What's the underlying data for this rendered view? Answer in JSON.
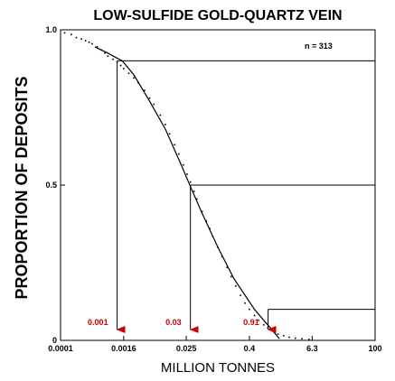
{
  "chart_data": {
    "type": "scatter",
    "title": "LOW-SULFIDE GOLD-QUARTZ VEIN",
    "xlabel": "MILLION TONNES",
    "ylabel": "PROPORTION OF DEPOSITS",
    "x_scale": "log",
    "xlim": [
      0.0001,
      100
    ],
    "ylim": [
      0,
      1
    ],
    "x_ticks": [
      {
        "value": 0.0001,
        "label": "0.0001"
      },
      {
        "value": 0.0016,
        "label": "0.0016"
      },
      {
        "value": 0.025,
        "label": "0.025"
      },
      {
        "value": 0.4,
        "label": "0.4"
      },
      {
        "value": 6.3,
        "label": "6.3"
      },
      {
        "value": 100,
        "label": "100"
      }
    ],
    "y_ticks": [
      {
        "value": 0,
        "label": "0"
      },
      {
        "value": 0.5,
        "label": "0.5"
      },
      {
        "value": 1,
        "label": "1.0"
      }
    ],
    "sample_size_label": "n = 313",
    "fitted_curve": {
      "x": [
        0.00045,
        0.0008,
        0.0011,
        0.0015,
        0.0025,
        0.005,
        0.01,
        0.02,
        0.03,
        0.05,
        0.1,
        0.2,
        0.5,
        1.0,
        1.5
      ],
      "y": [
        0.945,
        0.925,
        0.912,
        0.9,
        0.855,
        0.77,
        0.68,
        0.565,
        0.495,
        0.41,
        0.3,
        0.2,
        0.1,
        0.04,
        0.005
      ]
    },
    "observed_points": {
      "x": [
        0.00012,
        0.00016,
        0.0002,
        0.00025,
        0.0003,
        0.00035,
        0.0004,
        0.0005,
        0.0006,
        0.0007,
        0.0008,
        0.001,
        0.0012,
        0.0014,
        0.0016,
        0.002,
        0.0025,
        0.003,
        0.004,
        0.005,
        0.006,
        0.008,
        0.01,
        0.012,
        0.015,
        0.018,
        0.022,
        0.026,
        0.03,
        0.035,
        0.04,
        0.05,
        0.06,
        0.07,
        0.08,
        0.1,
        0.12,
        0.15,
        0.18,
        0.22,
        0.27,
        0.33,
        0.4,
        0.5,
        0.6,
        0.75,
        0.9,
        1.1,
        1.4,
        1.8,
        2.3,
        3.0,
        4.0,
        5.5
      ],
      "y": [
        0.99,
        0.985,
        0.975,
        0.97,
        0.965,
        0.96,
        0.955,
        0.945,
        0.935,
        0.925,
        0.915,
        0.905,
        0.895,
        0.885,
        0.875,
        0.86,
        0.845,
        0.83,
        0.805,
        0.78,
        0.76,
        0.725,
        0.695,
        0.665,
        0.63,
        0.6,
        0.565,
        0.535,
        0.51,
        0.48,
        0.455,
        0.415,
        0.385,
        0.36,
        0.335,
        0.3,
        0.27,
        0.235,
        0.205,
        0.175,
        0.145,
        0.12,
        0.1,
        0.08,
        0.065,
        0.05,
        0.04,
        0.03,
        0.02,
        0.015,
        0.01,
        0.007,
        0.005,
        0.003
      ]
    },
    "percentile_markers": [
      {
        "proportion": 0.9,
        "tonnage": 0.0012,
        "label": "0.001"
      },
      {
        "proportion": 0.5,
        "tonnage": 0.03,
        "label": "0.03"
      },
      {
        "proportion": 0.1,
        "tonnage": 0.91,
        "label": "0.91"
      }
    ],
    "colors": {
      "axes": "#000000",
      "curve": "#000000",
      "markers": "#000000",
      "annotation_text": "#cc0000",
      "arrowheads": "#cc0000",
      "background": "#ffffff"
    },
    "grid": false,
    "legend": "none"
  }
}
